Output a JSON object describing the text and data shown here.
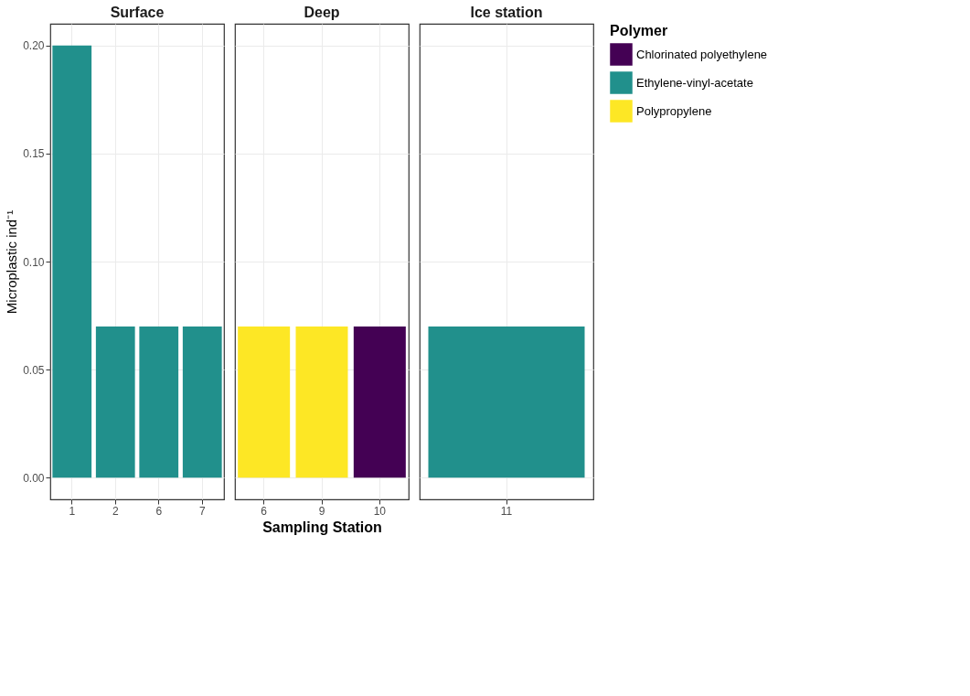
{
  "chart_data": [
    {
      "type": "bar",
      "title": "Surface",
      "ylabel": "Microplastic ind⁻¹",
      "categories": [
        "1",
        "2",
        "6",
        "7"
      ],
      "grid": true,
      "ylim": [
        -0.01,
        0.21
      ],
      "yticks": [
        {
          "value": 0,
          "label": "0.00"
        },
        {
          "value": 0.05,
          "label": "0.05"
        },
        {
          "value": 0.1,
          "label": "0.10"
        },
        {
          "value": 0.15,
          "label": "0.15"
        },
        {
          "value": 0.2,
          "label": "0.20"
        }
      ],
      "values": [
        0.2,
        0.07,
        0.07,
        0.07
      ],
      "colors": [
        "#21908c",
        "#21908c",
        "#21908c",
        "#21908c"
      ]
    },
    {
      "type": "bar",
      "title": "Deep",
      "xlabel": "Sampling Station",
      "categories": [
        "6",
        "9",
        "10"
      ],
      "grid": true,
      "tick_labels": "x",
      "ylim": [
        -0.01,
        0.21
      ],
      "yticks": [
        0,
        0.05,
        0.1,
        0.15,
        0.2
      ],
      "values": [
        0.07,
        0.07,
        0.07
      ],
      "colors": [
        "#fde725",
        "#fde725",
        "#440154"
      ]
    },
    {
      "type": "bar",
      "title": "Ice station",
      "categories": [
        "11"
      ],
      "grid": true,
      "legend": "right",
      "legend_title": "Polymer",
      "tick_labels": "x",
      "ylim": [
        -0.01,
        0.21
      ],
      "yticks": [
        0,
        0.05,
        0.1,
        0.15,
        0.2
      ],
      "series": [
        {
          "name": "Chlorinated polyethylene",
          "color": "#440154",
          "values": [
            null
          ]
        },
        {
          "name": "Ethylene-vinyl-acetate",
          "color": "#21908c",
          "values": [
            0.07
          ]
        },
        {
          "name": "Polypropylene",
          "color": "#fde725",
          "values": [
            null
          ]
        }
      ]
    }
  ]
}
